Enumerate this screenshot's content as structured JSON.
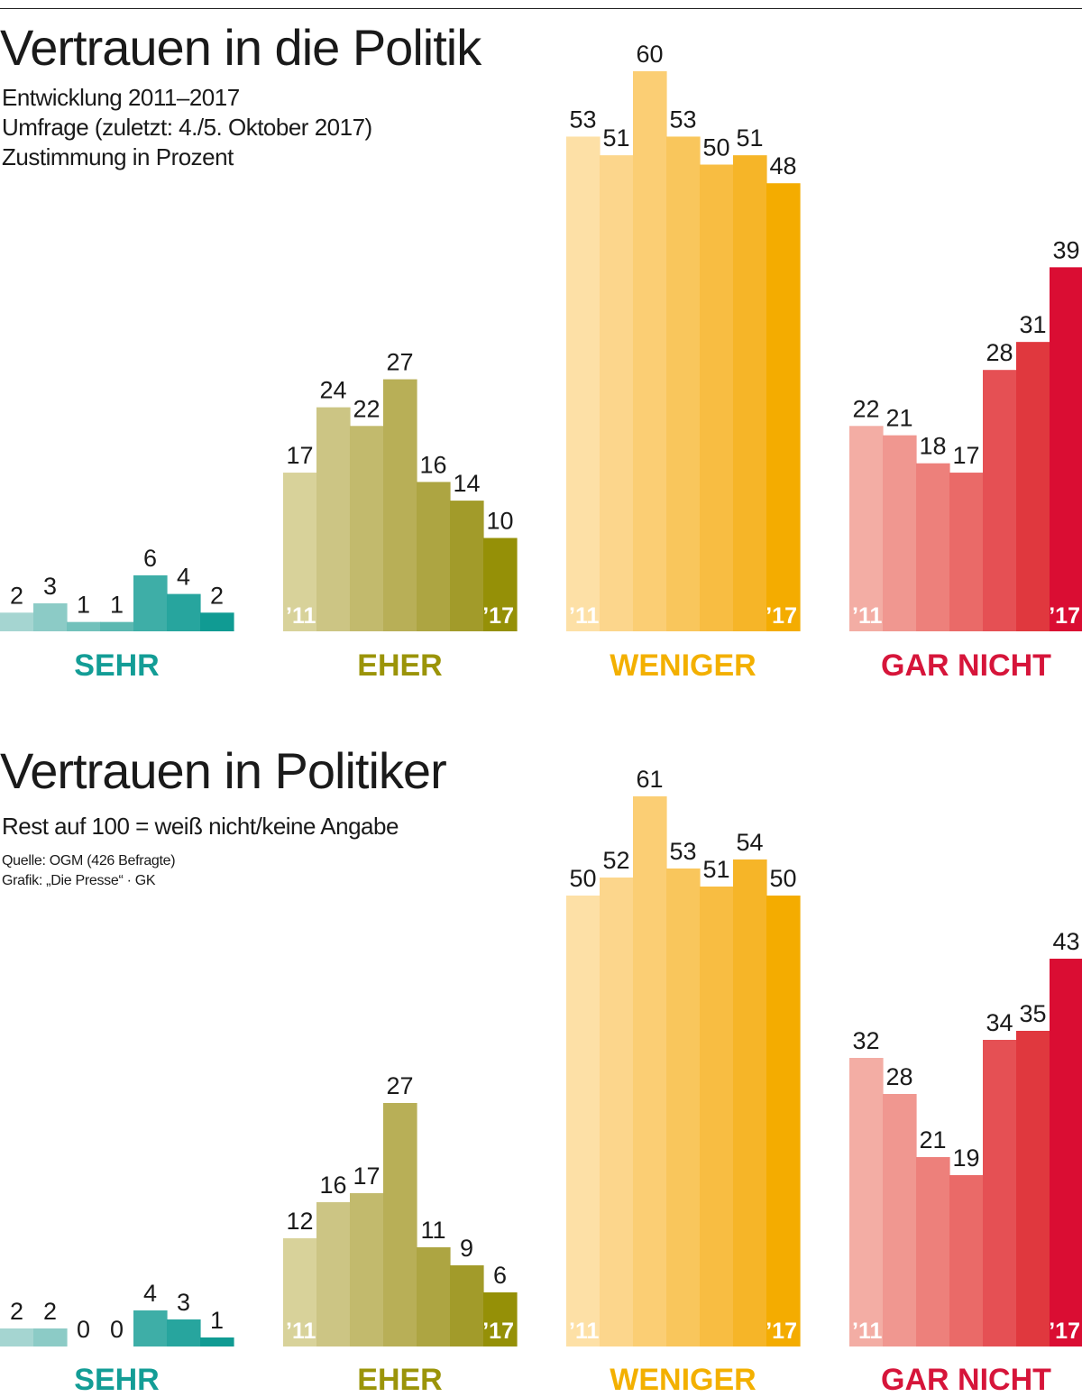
{
  "header": {
    "title": "Vertrauen in die Politik",
    "subtitle_lines": [
      "Entwicklung 2011–2017",
      "Umfrage (zuletzt: 4./5. Oktober 2017)",
      "Zustimmung in Prozent"
    ]
  },
  "second": {
    "title": "Vertrauen in Politiker",
    "note": "Rest auf 100 = weiß nicht/keine Angabe"
  },
  "footer": {
    "source": "Quelle: OGM (426 Befragte)",
    "credit": "Grafik: „Die Presse“ · GK"
  },
  "chart_data": [
    {
      "type": "bar",
      "title": "Vertrauen in die Politik",
      "xlabel": "",
      "ylabel": "Zustimmung in Prozent",
      "first_year_label": "’11",
      "last_year_label": "’17",
      "groups": [
        {
          "name": "SEHR",
          "label_color": "#139d96",
          "colors": [
            "#a5d5d1",
            "#8ccbc6",
            "#72c1bb",
            "#5ab8b1",
            "#3eaea7",
            "#27a59e",
            "#109b93"
          ],
          "values": [
            2,
            3,
            1,
            1,
            6,
            4,
            2
          ]
        },
        {
          "name": "EHER",
          "label_color": "#9b9409",
          "colors": [
            "#d8d29a",
            "#ccc584",
            "#c2ba6d",
            "#b8af57",
            "#ada542",
            "#a29b2a",
            "#959007"
          ],
          "values": [
            17,
            24,
            22,
            27,
            16,
            14,
            10
          ]
        },
        {
          "name": "WENIGER",
          "label_color": "#f3b000",
          "colors": [
            "#fde0a6",
            "#fcd68c",
            "#fbce74",
            "#f9c65c",
            "#f8bd42",
            "#f6b528",
            "#f4ac00"
          ],
          "values": [
            53,
            51,
            60,
            53,
            50,
            51,
            48
          ]
        },
        {
          "name": "GAR NICHT",
          "label_color": "#d6153a",
          "colors": [
            "#f3ada4",
            "#f09790",
            "#ed807b",
            "#ea6a68",
            "#e55054",
            "#e0383e",
            "#da0d33"
          ],
          "values": [
            22,
            21,
            18,
            17,
            28,
            31,
            39
          ]
        }
      ]
    },
    {
      "type": "bar",
      "title": "Vertrauen in Politiker",
      "xlabel": "",
      "ylabel": "Zustimmung in Prozent",
      "first_year_label": "’11",
      "last_year_label": "’17",
      "groups": [
        {
          "name": "SEHR",
          "label_color": "#139d96",
          "colors": [
            "#a5d5d1",
            "#8ccbc6",
            "#72c1bb",
            "#5ab8b1",
            "#3eaea7",
            "#27a59e",
            "#109b93"
          ],
          "values": [
            2,
            2,
            0,
            0,
            4,
            3,
            1
          ]
        },
        {
          "name": "EHER",
          "label_color": "#9b9409",
          "colors": [
            "#d8d29a",
            "#ccc584",
            "#c2ba6d",
            "#b8af57",
            "#ada542",
            "#a29b2a",
            "#959007"
          ],
          "values": [
            12,
            16,
            17,
            27,
            11,
            9,
            6
          ]
        },
        {
          "name": "WENIGER",
          "label_color": "#f3b000",
          "colors": [
            "#fde0a6",
            "#fcd68c",
            "#fbce74",
            "#f9c65c",
            "#f8bd42",
            "#f6b528",
            "#f4ac00"
          ],
          "values": [
            50,
            52,
            61,
            53,
            51,
            54,
            50
          ]
        },
        {
          "name": "GAR NICHT",
          "label_color": "#d6153a",
          "colors": [
            "#f3ada4",
            "#f09790",
            "#ed807b",
            "#ea6a68",
            "#e55054",
            "#e0383e",
            "#da0d33"
          ],
          "values": [
            32,
            28,
            21,
            19,
            34,
            35,
            43
          ]
        }
      ]
    }
  ]
}
